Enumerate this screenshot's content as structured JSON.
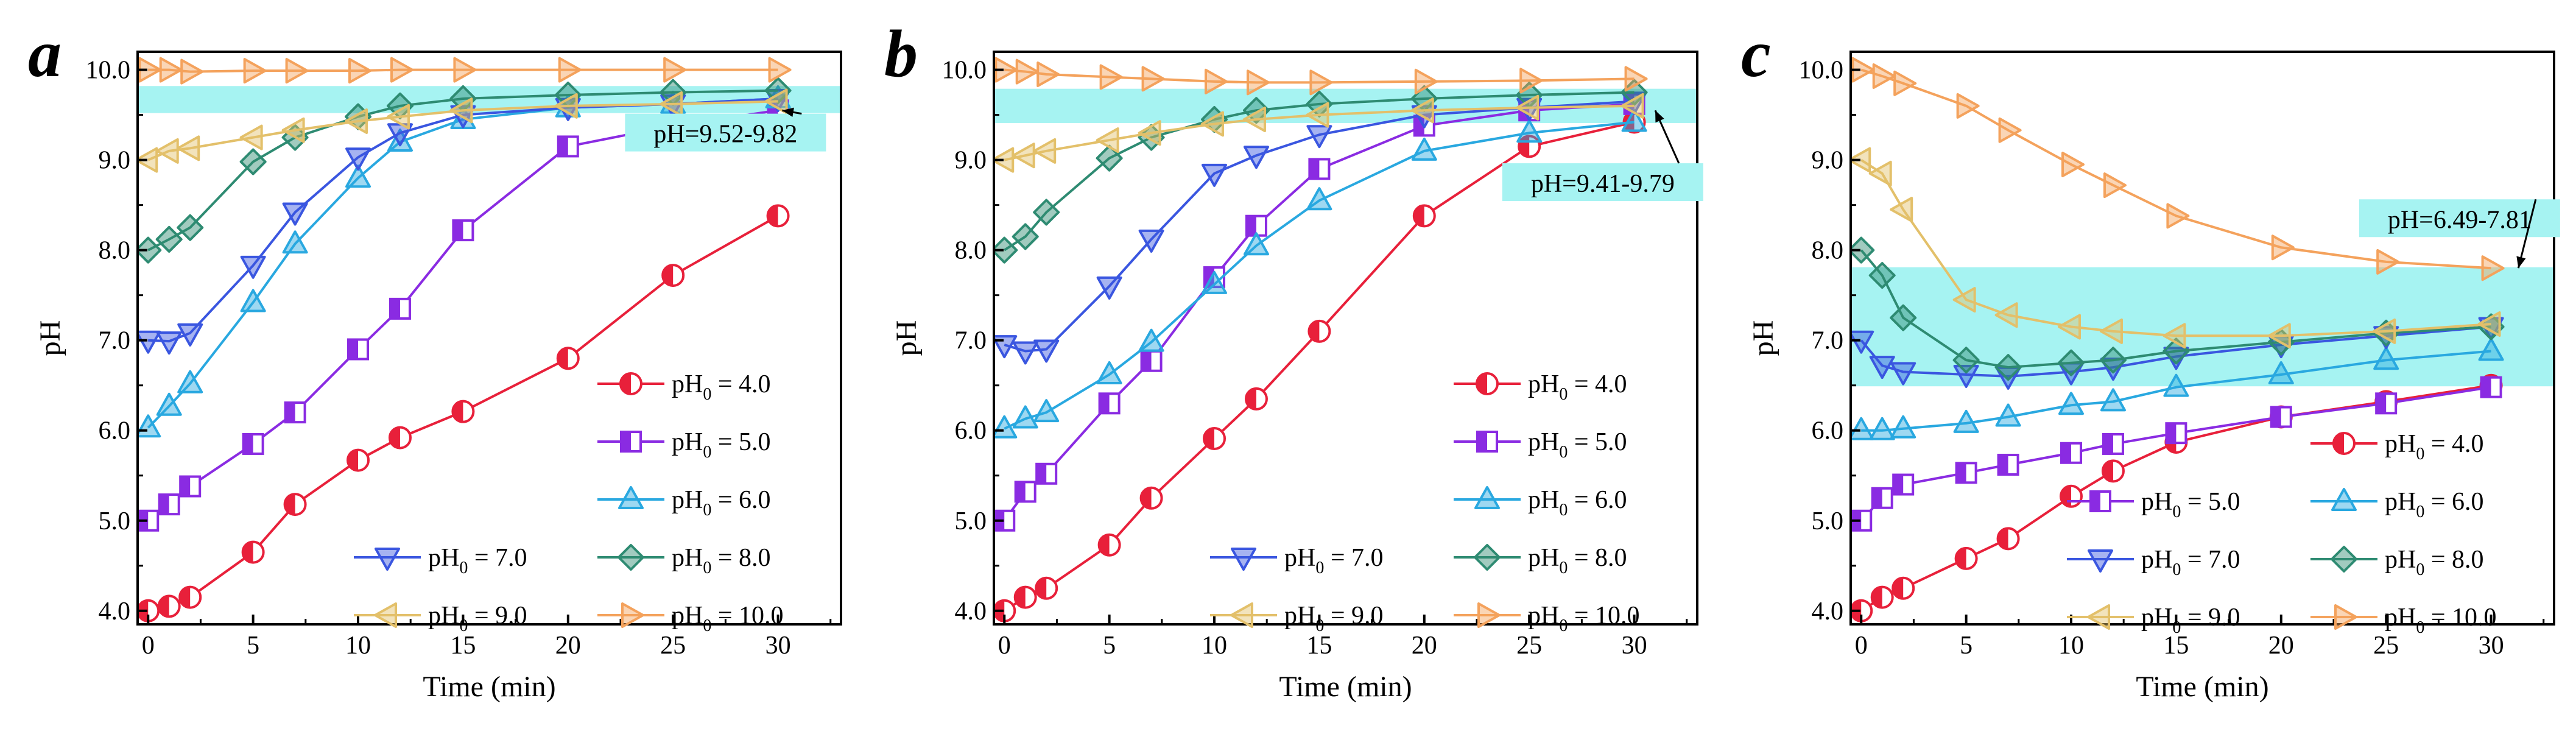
{
  "figure": {
    "domain": "Chart"
  },
  "style": {
    "colors": {
      "pH4": "#e8203a",
      "pH5": "#8a2be2",
      "pH6": "#29a8e0",
      "pH7": "#3a56e0",
      "pH8": "#2e8b72",
      "pH9": "#e3c06a",
      "pH10": "#f4a25c",
      "band": "#a6f3f2",
      "axis": "#000000"
    }
  },
  "chart_data": [
    {
      "panel": "a",
      "type": "line",
      "xlabel": "Time (min)",
      "ylabel": "pH",
      "xlim": [
        -0.5,
        33
      ],
      "ylim": [
        3.85,
        10.2
      ],
      "xticks": [
        0,
        5,
        10,
        15,
        20,
        25,
        30
      ],
      "xtick_labels": [
        "0",
        "5",
        "10",
        "15",
        "20",
        "25",
        "30"
      ],
      "yticks": [
        4,
        5,
        6,
        7,
        8,
        9,
        10
      ],
      "ytick_labels": [
        "4.0",
        "5.0",
        "6.0",
        "7.0",
        "8.0",
        "9.0",
        "10.0"
      ],
      "band": [
        9.52,
        9.82
      ],
      "annotation": {
        "text": "pH=9.52-9.82",
        "text_at": [
          27.5,
          9.25
        ],
        "arrow_to": [
          30.2,
          9.55
        ]
      },
      "legend": [
        {
          "row": 1,
          "col": 2,
          "label": "pH",
          "sub": "0",
          "value": " = 4.0",
          "series": 0
        },
        {
          "row": 2,
          "col": 2,
          "label": "pH",
          "sub": "0",
          "value": " = 5.0",
          "series": 1
        },
        {
          "row": 3,
          "col": 2,
          "label": "pH",
          "sub": "0",
          "value": " = 6.0",
          "series": 2
        },
        {
          "row": 4,
          "col": 1,
          "label": "pH",
          "sub": "0",
          "value": " = 7.0",
          "series": 3
        },
        {
          "row": 4,
          "col": 2,
          "label": "pH",
          "sub": "0",
          "value": " = 8.0",
          "series": 4
        },
        {
          "row": 5,
          "col": 1,
          "label": "pH",
          "sub": "0",
          "value": " = 9.0",
          "series": 5
        },
        {
          "row": 5,
          "col": 2,
          "label": "pH",
          "sub": "0",
          "value": " = 10.0",
          "series": 6
        }
      ],
      "series": [
        {
          "name": "pH0 = 4.0",
          "color_key": "pH4",
          "marker": "circle-half",
          "x": [
            0,
            1,
            2,
            5,
            7,
            10,
            12,
            15,
            20,
            25,
            30
          ],
          "y": [
            4.0,
            4.05,
            4.15,
            4.65,
            5.18,
            5.67,
            5.92,
            6.21,
            6.8,
            7.72,
            8.38
          ]
        },
        {
          "name": "pH0 = 5.0",
          "color_key": "pH5",
          "marker": "square-half",
          "x": [
            0,
            1,
            2,
            5,
            7,
            10,
            12,
            15,
            20,
            25,
            30
          ],
          "y": [
            5.0,
            5.18,
            5.38,
            5.85,
            6.2,
            6.9,
            7.35,
            8.22,
            9.15,
            9.38,
            9.55
          ]
        },
        {
          "name": "pH0 = 6.0",
          "color_key": "pH6",
          "marker": "triangle-up",
          "x": [
            0,
            1,
            2,
            5,
            7,
            10,
            12,
            15,
            20,
            25,
            30
          ],
          "y": [
            6.03,
            6.27,
            6.52,
            7.42,
            8.07,
            8.8,
            9.2,
            9.45,
            9.58,
            9.62,
            9.68
          ]
        },
        {
          "name": "pH0 = 7.0",
          "color_key": "pH7",
          "marker": "triangle-down",
          "x": [
            0,
            1,
            2,
            5,
            7,
            10,
            12,
            15,
            20,
            25,
            30
          ],
          "y": [
            7.0,
            6.99,
            7.08,
            7.83,
            8.42,
            9.03,
            9.3,
            9.5,
            9.58,
            9.62,
            9.68
          ]
        },
        {
          "name": "pH0 = 8.0",
          "color_key": "pH8",
          "marker": "diamond",
          "x": [
            0,
            1,
            2,
            5,
            7,
            10,
            12,
            15,
            20,
            25,
            30
          ],
          "y": [
            8.0,
            8.12,
            8.25,
            8.98,
            9.25,
            9.48,
            9.6,
            9.68,
            9.72,
            9.75,
            9.77
          ]
        },
        {
          "name": "pH0 = 9.0",
          "color_key": "pH9",
          "marker": "triangle-left",
          "x": [
            0,
            1,
            2,
            5,
            7,
            10,
            12,
            15,
            20,
            25,
            30
          ],
          "y": [
            9.0,
            9.1,
            9.13,
            9.25,
            9.33,
            9.43,
            9.48,
            9.55,
            9.6,
            9.62,
            9.65
          ]
        },
        {
          "name": "pH0 = 10.0",
          "color_key": "pH10",
          "marker": "triangle-right",
          "x": [
            0,
            1,
            2,
            5,
            7,
            10,
            12,
            15,
            20,
            25,
            30
          ],
          "y": [
            10.0,
            10.0,
            9.98,
            9.99,
            9.99,
            9.99,
            10.0,
            10.0,
            10.0,
            10.0,
            10.0
          ]
        }
      ]
    },
    {
      "panel": "b",
      "type": "line",
      "xlabel": "Time (min)",
      "ylabel": "pH",
      "xlim": [
        -0.5,
        33
      ],
      "ylim": [
        3.85,
        10.2
      ],
      "xticks": [
        0,
        5,
        10,
        15,
        20,
        25,
        30
      ],
      "xtick_labels": [
        "0",
        "5",
        "10",
        "15",
        "20",
        "25",
        "30"
      ],
      "yticks": [
        4,
        5,
        6,
        7,
        8,
        9,
        10
      ],
      "ytick_labels": [
        "4.0",
        "5.0",
        "6.0",
        "7.0",
        "8.0",
        "9.0",
        "10.0"
      ],
      "band": [
        9.41,
        9.79
      ],
      "annotation": {
        "text": "pH=9.41-9.79",
        "text_at": [
          28.5,
          8.7
        ],
        "arrow_to": [
          31.0,
          9.55
        ]
      },
      "legend": [
        {
          "row": 1,
          "col": 2,
          "label": "pH",
          "sub": "0",
          "value": " = 4.0",
          "series": 0
        },
        {
          "row": 2,
          "col": 2,
          "label": "pH",
          "sub": "0",
          "value": " = 5.0",
          "series": 1
        },
        {
          "row": 3,
          "col": 2,
          "label": "pH",
          "sub": "0",
          "value": " = 6.0",
          "series": 2
        },
        {
          "row": 4,
          "col": 1,
          "label": "pH",
          "sub": "0",
          "value": " = 7.0",
          "series": 3
        },
        {
          "row": 4,
          "col": 2,
          "label": "pH",
          "sub": "0",
          "value": " = 8.0",
          "series": 4
        },
        {
          "row": 5,
          "col": 1,
          "label": "pH",
          "sub": "0",
          "value": " = 9.0",
          "series": 5
        },
        {
          "row": 5,
          "col": 2,
          "label": "pH",
          "sub": "0",
          "value": " = 10.0",
          "series": 6
        }
      ],
      "series": [
        {
          "name": "pH0 = 4.0",
          "color_key": "pH4",
          "marker": "circle-half",
          "x": [
            0,
            1,
            2,
            5,
            7,
            10,
            12,
            15,
            20,
            25,
            30
          ],
          "y": [
            4.0,
            4.15,
            4.25,
            4.73,
            5.25,
            5.91,
            6.35,
            7.1,
            8.38,
            9.15,
            9.42
          ]
        },
        {
          "name": "pH0 = 5.0",
          "color_key": "pH5",
          "marker": "square-half",
          "x": [
            0,
            1,
            2,
            5,
            7,
            10,
            12,
            15,
            20,
            25,
            30
          ],
          "y": [
            5.0,
            5.32,
            5.52,
            6.3,
            6.77,
            7.7,
            8.27,
            8.9,
            9.38,
            9.55,
            9.62
          ]
        },
        {
          "name": "pH0 = 6.0",
          "color_key": "pH6",
          "marker": "triangle-up",
          "x": [
            0,
            1,
            2,
            5,
            7,
            10,
            12,
            15,
            20,
            25,
            30
          ],
          "y": [
            6.02,
            6.13,
            6.2,
            6.62,
            6.98,
            7.62,
            8.05,
            8.55,
            9.1,
            9.3,
            9.42
          ]
        },
        {
          "name": "pH0 = 7.0",
          "color_key": "pH7",
          "marker": "triangle-down",
          "x": [
            0,
            1,
            2,
            5,
            7,
            10,
            12,
            15,
            20,
            25,
            30
          ],
          "y": [
            6.95,
            6.88,
            6.9,
            7.6,
            8.12,
            8.85,
            9.05,
            9.28,
            9.5,
            9.58,
            9.65
          ]
        },
        {
          "name": "pH0 = 8.0",
          "color_key": "pH8",
          "marker": "diamond",
          "x": [
            0,
            1,
            2,
            5,
            7,
            10,
            12,
            15,
            20,
            25,
            30
          ],
          "y": [
            8.0,
            8.15,
            8.42,
            9.02,
            9.25,
            9.45,
            9.55,
            9.62,
            9.68,
            9.72,
            9.75
          ]
        },
        {
          "name": "pH0 = 9.0",
          "color_key": "pH9",
          "marker": "triangle-left",
          "x": [
            0,
            1,
            2,
            5,
            7,
            10,
            12,
            15,
            20,
            25,
            30
          ],
          "y": [
            9.0,
            9.05,
            9.1,
            9.22,
            9.3,
            9.4,
            9.45,
            9.5,
            9.55,
            9.58,
            9.6
          ]
        },
        {
          "name": "pH0 = 10.0",
          "color_key": "pH10",
          "marker": "triangle-right",
          "x": [
            0,
            1,
            2,
            5,
            7,
            10,
            12,
            15,
            20,
            25,
            30
          ],
          "y": [
            10.0,
            9.98,
            9.95,
            9.92,
            9.9,
            9.87,
            9.86,
            9.86,
            9.87,
            9.88,
            9.9
          ]
        }
      ]
    },
    {
      "panel": "c",
      "type": "line",
      "xlabel": "Time (min)",
      "ylabel": "pH",
      "xlim": [
        -0.5,
        33
      ],
      "ylim": [
        3.85,
        10.2
      ],
      "xticks": [
        0,
        5,
        10,
        15,
        20,
        25,
        30
      ],
      "xtick_labels": [
        "0",
        "5",
        "10",
        "15",
        "20",
        "25",
        "30"
      ],
      "yticks": [
        4,
        5,
        6,
        7,
        8,
        9,
        10
      ],
      "ytick_labels": [
        "4.0",
        "5.0",
        "6.0",
        "7.0",
        "8.0",
        "9.0",
        "10.0"
      ],
      "band": [
        6.49,
        7.81
      ],
      "annotation": {
        "text": "pH=6.49-7.81",
        "text_at": [
          28.5,
          8.3
        ],
        "arrow_to": [
          31.3,
          7.8
        ]
      },
      "legend": [
        {
          "row": 1,
          "col": 2,
          "label": "pH",
          "sub": "0",
          "value": " = 4.0",
          "series": 0
        },
        {
          "row": 2,
          "col": 1,
          "label": "pH",
          "sub": "0",
          "value": " = 5.0",
          "series": 1
        },
        {
          "row": 2,
          "col": 2,
          "label": "pH",
          "sub": "0",
          "value": " = 6.0",
          "series": 2
        },
        {
          "row": 3,
          "col": 1,
          "label": "pH",
          "sub": "0",
          "value": " = 7.0",
          "series": 3
        },
        {
          "row": 3,
          "col": 2,
          "label": "pH",
          "sub": "0",
          "value": " = 8.0",
          "series": 4
        },
        {
          "row": 4,
          "col": 1,
          "label": "pH",
          "sub": "0",
          "value": " = 9.0",
          "series": 5
        },
        {
          "row": 4,
          "col": 2,
          "label": "pH",
          "sub": "0",
          "value": " = 10.0",
          "series": 6
        }
      ],
      "series": [
        {
          "name": "pH0 = 4.0",
          "color_key": "pH4",
          "marker": "circle-half",
          "x": [
            0,
            1,
            2,
            5,
            7,
            10,
            12,
            15,
            20,
            25,
            30
          ],
          "y": [
            4.0,
            4.15,
            4.25,
            4.58,
            4.8,
            5.27,
            5.55,
            5.87,
            6.15,
            6.32,
            6.5
          ]
        },
        {
          "name": "pH0 = 5.0",
          "color_key": "pH5",
          "marker": "square-half",
          "x": [
            0,
            1,
            2,
            5,
            7,
            10,
            12,
            15,
            20,
            25,
            30
          ],
          "y": [
            5.0,
            5.25,
            5.4,
            5.53,
            5.62,
            5.75,
            5.85,
            5.97,
            6.15,
            6.3,
            6.48
          ]
        },
        {
          "name": "pH0 = 6.0",
          "color_key": "pH6",
          "marker": "triangle-up",
          "x": [
            0,
            1,
            2,
            5,
            7,
            10,
            12,
            15,
            20,
            25,
            30
          ],
          "y": [
            6.0,
            6.0,
            6.02,
            6.08,
            6.15,
            6.28,
            6.32,
            6.48,
            6.62,
            6.78,
            6.88
          ]
        },
        {
          "name": "pH0 = 7.0",
          "color_key": "pH7",
          "marker": "triangle-down",
          "x": [
            0,
            1,
            2,
            5,
            7,
            10,
            12,
            15,
            20,
            25,
            30
          ],
          "y": [
            7.0,
            6.72,
            6.65,
            6.62,
            6.6,
            6.65,
            6.7,
            6.82,
            6.95,
            7.05,
            7.15
          ]
        },
        {
          "name": "pH0 = 8.0",
          "color_key": "pH8",
          "marker": "diamond",
          "x": [
            0,
            1,
            2,
            5,
            7,
            10,
            12,
            15,
            20,
            25,
            30
          ],
          "y": [
            8.0,
            7.72,
            7.25,
            6.78,
            6.7,
            6.75,
            6.78,
            6.88,
            6.98,
            7.08,
            7.15
          ]
        },
        {
          "name": "pH0 = 9.0",
          "color_key": "pH9",
          "marker": "triangle-left",
          "x": [
            0,
            1,
            2,
            5,
            7,
            10,
            12,
            15,
            20,
            25,
            30
          ],
          "y": [
            9.0,
            8.85,
            8.45,
            7.45,
            7.28,
            7.15,
            7.1,
            7.05,
            7.05,
            7.1,
            7.18
          ]
        },
        {
          "name": "pH0 = 10.0",
          "color_key": "pH10",
          "marker": "triangle-right",
          "x": [
            0,
            1,
            2,
            5,
            7,
            10,
            12,
            15,
            20,
            25,
            30
          ],
          "y": [
            10.0,
            9.93,
            9.85,
            9.6,
            9.33,
            8.95,
            8.72,
            8.38,
            8.03,
            7.87,
            7.8
          ]
        }
      ]
    }
  ]
}
